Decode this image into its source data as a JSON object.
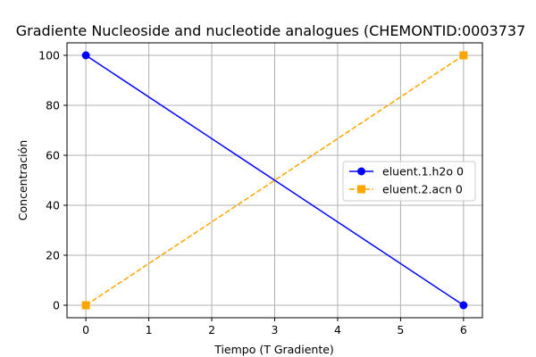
{
  "chart_data": {
    "type": "line",
    "title": "Gradiente Nucleoside and nucleotide analogues (CHEMONTID:0003737",
    "xlabel": "Tiempo (T Gradiente)",
    "ylabel": "Concentración",
    "xlim": [
      -0.3,
      6.3
    ],
    "ylim": [
      -5,
      105
    ],
    "xticks": [
      0,
      1,
      2,
      3,
      4,
      5,
      6
    ],
    "yticks": [
      0,
      20,
      40,
      60,
      80,
      100
    ],
    "grid": true,
    "legend_position": "center-right",
    "series": [
      {
        "name": "eluent.1.h2o 0",
        "x": [
          0,
          6
        ],
        "y": [
          100,
          0
        ],
        "color": "#0000ff",
        "line_style": "solid",
        "marker": "circle"
      },
      {
        "name": "eluent.2.acn 0",
        "x": [
          0,
          6
        ],
        "y": [
          0,
          100
        ],
        "color": "#ffa500",
        "line_style": "dashed",
        "marker": "square"
      }
    ]
  }
}
